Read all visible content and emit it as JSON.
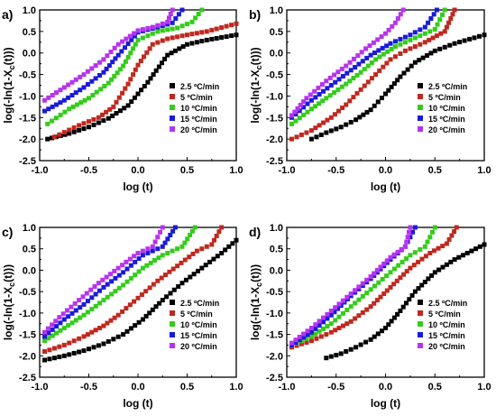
{
  "colors": {
    "series": [
      "#000000",
      "#c0281e",
      "#33cc1a",
      "#1a1adb",
      "#b733ee"
    ]
  },
  "chart_data": [
    {
      "type": "scatter",
      "panel_label": "a)",
      "xlabel": "log (t)",
      "ylabel": "log(-ln(1-X_c(t)))",
      "xlim": [
        -1.0,
        1.0
      ],
      "ylim": [
        -2.5,
        1.0
      ],
      "xticks": [
        "-1.0",
        "-0.5",
        "0.0",
        "0.5",
        "1.0"
      ],
      "yticks": [
        "-2.5",
        "-2.0",
        "-1.5",
        "-1.0",
        "-0.5",
        "0.0",
        "0.5",
        "1.0"
      ],
      "legend_position": "bottom-right",
      "series": [
        {
          "name": "2.5 ºC/min",
          "x": [
            -0.92,
            -0.7,
            -0.5,
            -0.3,
            -0.1,
            0.1,
            0.3,
            0.5,
            0.7,
            1.0
          ],
          "y": [
            -2.0,
            -1.87,
            -1.72,
            -1.52,
            -1.22,
            -0.68,
            -0.05,
            0.2,
            0.3,
            0.42
          ]
        },
        {
          "name": "5 ºC/min",
          "x": [
            -0.85,
            -0.6,
            -0.4,
            -0.25,
            -0.1,
            0.0,
            0.15,
            0.3,
            0.5,
            0.7,
            1.0
          ],
          "y": [
            -1.95,
            -1.68,
            -1.5,
            -1.25,
            -0.72,
            -0.28,
            0.2,
            0.33,
            0.42,
            0.5,
            0.68
          ]
        },
        {
          "name": "10 ºC/min",
          "x": [
            -0.92,
            -0.7,
            -0.5,
            -0.3,
            -0.15,
            0.0,
            0.2,
            0.4,
            0.55,
            0.65
          ],
          "y": [
            -1.65,
            -1.3,
            -1.05,
            -0.7,
            -0.3,
            0.3,
            0.5,
            0.58,
            0.72,
            1.0
          ]
        },
        {
          "name": "15 ºC/min",
          "x": [
            -0.95,
            -0.75,
            -0.55,
            -0.35,
            -0.2,
            0.0,
            0.2,
            0.35,
            0.45
          ],
          "y": [
            -1.35,
            -1.1,
            -0.8,
            -0.45,
            -0.05,
            0.48,
            0.6,
            0.7,
            1.0
          ]
        },
        {
          "name": "20 ºC/min",
          "x": [
            -0.95,
            -0.75,
            -0.55,
            -0.35,
            -0.2,
            0.0,
            0.15,
            0.3,
            0.35
          ],
          "y": [
            -1.1,
            -0.8,
            -0.5,
            -0.15,
            0.2,
            0.52,
            0.6,
            0.72,
            1.0
          ]
        }
      ]
    },
    {
      "type": "scatter",
      "panel_label": "b)",
      "xlabel": "log (t)",
      "ylabel": "log(-ln(1-X_c(t)))",
      "xlim": [
        -1.0,
        1.0
      ],
      "ylim": [
        -2.5,
        1.0
      ],
      "xticks": [
        "-1.0",
        "-0.5",
        "0.0",
        "0.5",
        "1.0"
      ],
      "yticks": [
        "-2.5",
        "-2.0",
        "-1.5",
        "-1.0",
        "-0.5",
        "0.0",
        "0.5",
        "1.0"
      ],
      "legend_position": "bottom-right",
      "series": [
        {
          "name": "2.5 ºC/min",
          "x": [
            -0.75,
            -0.6,
            -0.45,
            -0.3,
            -0.15,
            0.0,
            0.15,
            0.3,
            0.5,
            0.7,
            1.0
          ],
          "y": [
            -2.0,
            -1.85,
            -1.72,
            -1.55,
            -1.32,
            -0.95,
            -0.55,
            -0.22,
            0.05,
            0.22,
            0.42
          ]
        },
        {
          "name": "5 ºC/min",
          "x": [
            -0.95,
            -0.75,
            -0.55,
            -0.4,
            -0.25,
            -0.1,
            0.05,
            0.2,
            0.4,
            0.6,
            0.7
          ],
          "y": [
            -2.0,
            -1.8,
            -1.5,
            -1.2,
            -0.85,
            -0.5,
            -0.15,
            0.05,
            0.25,
            0.5,
            1.0
          ]
        },
        {
          "name": "10 ºC/min",
          "x": [
            -0.95,
            -0.75,
            -0.6,
            -0.4,
            -0.25,
            -0.1,
            0.1,
            0.3,
            0.5,
            0.6
          ],
          "y": [
            -1.65,
            -1.3,
            -1.05,
            -0.72,
            -0.45,
            -0.15,
            0.15,
            0.35,
            0.55,
            1.0
          ]
        },
        {
          "name": "15 ºC/min",
          "x": [
            -0.95,
            -0.75,
            -0.55,
            -0.35,
            -0.15,
            0.05,
            0.25,
            0.4,
            0.52
          ],
          "y": [
            -1.5,
            -1.1,
            -0.75,
            -0.4,
            -0.05,
            0.22,
            0.42,
            0.6,
            1.0
          ]
        },
        {
          "name": "20 ºC/min",
          "x": [
            -0.95,
            -0.8,
            -0.6,
            -0.4,
            -0.2,
            0.0,
            0.1,
            0.18
          ],
          "y": [
            -1.45,
            -1.05,
            -0.65,
            -0.3,
            0.1,
            0.45,
            0.7,
            1.0
          ]
        }
      ]
    },
    {
      "type": "scatter",
      "panel_label": "c)",
      "xlabel": "log (t)",
      "ylabel": "log(-ln(1-X_c(t)))",
      "xlim": [
        -1.0,
        1.0
      ],
      "ylim": [
        -2.5,
        1.0
      ],
      "xticks": [
        "-1.0",
        "-0.5",
        "0.0",
        "0.5",
        "1.0"
      ],
      "yticks": [
        "-2.5",
        "-2.0",
        "-1.5",
        "-1.0",
        "-0.5",
        "0.0",
        "0.5",
        "1.0"
      ],
      "legend_position": "bottom-right",
      "series": [
        {
          "name": "2.5 ºC/min",
          "x": [
            -0.95,
            -0.75,
            -0.55,
            -0.35,
            -0.15,
            0.05,
            0.25,
            0.45,
            0.65,
            0.85,
            1.0
          ],
          "y": [
            -2.1,
            -2.0,
            -1.88,
            -1.72,
            -1.5,
            -1.15,
            -0.7,
            -0.3,
            0.05,
            0.4,
            0.7
          ]
        },
        {
          "name": "5 ºC/min",
          "x": [
            -0.95,
            -0.75,
            -0.55,
            -0.35,
            -0.2,
            0.0,
            0.2,
            0.4,
            0.6,
            0.75,
            0.85
          ],
          "y": [
            -1.9,
            -1.75,
            -1.55,
            -1.3,
            -1.05,
            -0.65,
            -0.25,
            0.1,
            0.45,
            0.6,
            1.0
          ]
        },
        {
          "name": "10 ºC/min",
          "x": [
            -0.95,
            -0.75,
            -0.55,
            -0.35,
            -0.15,
            0.05,
            0.25,
            0.45,
            0.58
          ],
          "y": [
            -1.65,
            -1.35,
            -1.05,
            -0.7,
            -0.35,
            0.05,
            0.35,
            0.55,
            1.0
          ]
        },
        {
          "name": "15 ºC/min",
          "x": [
            -0.95,
            -0.75,
            -0.55,
            -0.35,
            -0.15,
            0.05,
            0.25,
            0.38
          ],
          "y": [
            -1.55,
            -1.15,
            -0.8,
            -0.4,
            -0.05,
            0.35,
            0.55,
            1.0
          ]
        },
        {
          "name": "20 ºC/min",
          "x": [
            -0.95,
            -0.8,
            -0.6,
            -0.4,
            -0.2,
            0.0,
            0.15,
            0.25
          ],
          "y": [
            -1.45,
            -1.1,
            -0.7,
            -0.3,
            0.05,
            0.4,
            0.55,
            1.0
          ]
        }
      ]
    },
    {
      "type": "scatter",
      "panel_label": "d)",
      "xlabel": "log (t)",
      "ylabel": "log(-ln(1-X_c(t)))",
      "xlim": [
        -1.0,
        1.0
      ],
      "ylim": [
        -2.5,
        1.0
      ],
      "xticks": [
        "-1.0",
        "-0.5",
        "0.0",
        "0.5",
        "1.0"
      ],
      "yticks": [
        "-2.5",
        "-2.0",
        "-1.5",
        "-1.0",
        "-0.5",
        "0.0",
        "0.5",
        "1.0"
      ],
      "legend_position": "bottom-right",
      "series": [
        {
          "name": "2.5 ºC/min",
          "x": [
            -0.6,
            -0.45,
            -0.3,
            -0.15,
            0.0,
            0.15,
            0.3,
            0.5,
            0.7,
            1.0
          ],
          "y": [
            -2.05,
            -1.95,
            -1.8,
            -1.62,
            -1.35,
            -0.95,
            -0.5,
            -0.05,
            0.25,
            0.6
          ]
        },
        {
          "name": "5 ºC/min",
          "x": [
            -0.95,
            -0.75,
            -0.55,
            -0.35,
            -0.15,
            0.05,
            0.25,
            0.45,
            0.62,
            0.72
          ],
          "y": [
            -1.8,
            -1.65,
            -1.45,
            -1.2,
            -0.85,
            -0.4,
            0.05,
            0.4,
            0.62,
            1.0
          ]
        },
        {
          "name": "10 ºC/min",
          "x": [
            -0.95,
            -0.75,
            -0.55,
            -0.35,
            -0.15,
            0.05,
            0.25,
            0.4,
            0.5
          ],
          "y": [
            -1.75,
            -1.55,
            -1.25,
            -0.85,
            -0.45,
            -0.05,
            0.35,
            0.55,
            1.0
          ]
        },
        {
          "name": "15 ºC/min",
          "x": [
            -0.95,
            -0.75,
            -0.55,
            -0.35,
            -0.15,
            0.05,
            0.2,
            0.3
          ],
          "y": [
            -1.75,
            -1.45,
            -1.05,
            -0.6,
            -0.2,
            0.25,
            0.55,
            1.0
          ]
        },
        {
          "name": "20 ºC/min",
          "x": [
            -0.95,
            -0.75,
            -0.55,
            -0.35,
            -0.15,
            0.05,
            0.2,
            0.25
          ],
          "y": [
            -1.7,
            -1.35,
            -0.95,
            -0.55,
            -0.15,
            0.3,
            0.55,
            1.0
          ]
        }
      ]
    }
  ]
}
